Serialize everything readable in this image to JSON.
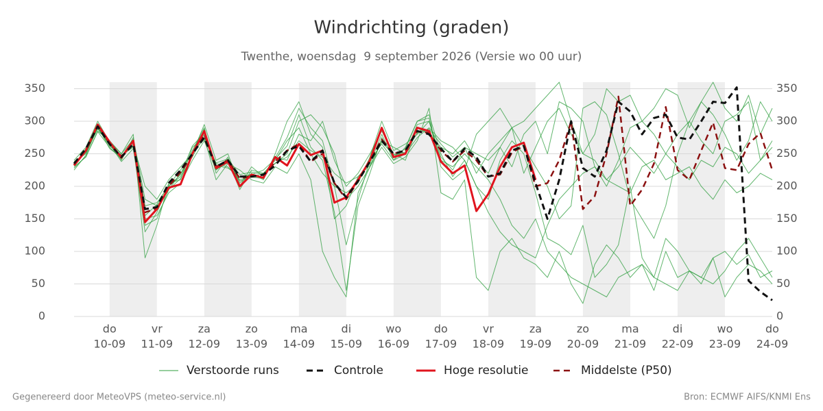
{
  "chart_data": {
    "type": "line",
    "title": "Windrichting (graden)",
    "subtitle": "Twenthe, woensdag  9 september 2026 (Versie wo 00 uur)",
    "footer_left": "Gegenereerd door MeteoVPS (meteo-service.nl)",
    "footer_right": "Bron: ECMWF AIFS/KNMI Ens",
    "categories": [
      null,
      null,
      null,
      {
        "day": "do",
        "date": "10-09"
      },
      null,
      null,
      null,
      {
        "day": "vr",
        "date": "11-09"
      },
      null,
      null,
      null,
      {
        "day": "za",
        "date": "12-09"
      },
      null,
      null,
      null,
      {
        "day": "zo",
        "date": "13-09"
      },
      null,
      null,
      null,
      {
        "day": "ma",
        "date": "14-09"
      },
      null,
      null,
      null,
      {
        "day": "di",
        "date": "15-09"
      },
      null,
      null,
      null,
      {
        "day": "wo",
        "date": "16-09"
      },
      null,
      null,
      null,
      {
        "day": "do",
        "date": "17-09"
      },
      null,
      null,
      null,
      {
        "day": "vr",
        "date": "18-09"
      },
      null,
      null,
      null,
      {
        "day": "za",
        "date": "19-09"
      },
      null,
      null,
      null,
      {
        "day": "zo",
        "date": "20-09"
      },
      null,
      null,
      null,
      {
        "day": "ma",
        "date": "21-09"
      },
      null,
      null,
      null,
      {
        "day": "di",
        "date": "22-09"
      },
      null,
      null,
      null,
      {
        "day": "wo",
        "date": "23-09"
      },
      null,
      null,
      null,
      {
        "day": "do",
        "date": "24-09"
      }
    ],
    "ylim": [
      0,
      360
    ],
    "yticks": [
      0,
      50,
      100,
      150,
      200,
      250,
      300,
      350
    ],
    "grid": true,
    "ensemble": {
      "name": "Verstoorde runs",
      "color": "#2e9e3e",
      "members": [
        [
          238,
          250,
          290,
          262,
          248,
          260,
          130,
          160,
          200,
          215,
          255,
          290,
          220,
          245,
          205,
          220,
          210,
          250,
          300,
          330,
          280,
          260,
          150,
          170,
          215,
          235,
          280,
          240,
          260,
          300,
          310,
          250,
          215,
          240,
          200,
          180,
          240,
          270,
          250,
          190,
          120,
          110,
          95,
          140,
          60,
          80,
          110,
          200,
          90,
          60,
          120,
          100,
          70,
          60,
          90,
          100,
          80,
          95,
          60,
          70
        ],
        [
          230,
          245,
          285,
          270,
          240,
          275,
          180,
          170,
          195,
          220,
          245,
          280,
          235,
          230,
          210,
          215,
          220,
          240,
          270,
          290,
          250,
          220,
          200,
          190,
          205,
          245,
          300,
          255,
          265,
          280,
          300,
          245,
          225,
          260,
          220,
          250,
          270,
          290,
          220,
          260,
          300,
          320,
          280,
          250,
          240,
          210,
          230,
          260,
          240,
          220,
          250,
          230,
          210,
          240,
          230,
          260,
          250,
          220,
          240,
          260
        ],
        [
          240,
          260,
          300,
          268,
          250,
          280,
          90,
          140,
          205,
          210,
          260,
          275,
          210,
          235,
          225,
          210,
          205,
          230,
          220,
          250,
          210,
          100,
          60,
          30,
          190,
          230,
          260,
          235,
          245,
          270,
          320,
          190,
          180,
          210,
          60,
          40,
          100,
          120,
          90,
          80,
          60,
          100,
          50,
          20,
          80,
          110,
          90,
          60,
          80,
          40,
          100,
          60,
          70,
          50,
          90,
          30,
          60,
          80,
          70,
          50
        ],
        [
          225,
          248,
          292,
          258,
          245,
          265,
          200,
          180,
          210,
          230,
          250,
          295,
          240,
          250,
          200,
          230,
          215,
          245,
          240,
          280,
          270,
          300,
          240,
          200,
          220,
          250,
          285,
          250,
          240,
          290,
          280,
          260,
          250,
          270,
          240,
          220,
          260,
          290,
          300,
          320,
          340,
          360,
          300,
          250,
          280,
          350,
          330,
          340,
          300,
          320,
          350,
          340,
          290,
          330,
          360,
          320,
          300,
          340,
          280,
          320
        ],
        [
          235,
          252,
          288,
          265,
          238,
          258,
          150,
          155,
          190,
          205,
          240,
          270,
          225,
          240,
          195,
          225,
          220,
          235,
          250,
          300,
          310,
          290,
          250,
          180,
          200,
          230,
          270,
          260,
          250,
          275,
          290,
          270,
          260,
          240,
          200,
          160,
          130,
          110,
          100,
          90,
          140,
          180,
          200,
          220,
          230,
          210,
          200,
          190,
          230,
          240,
          210,
          220,
          230,
          200,
          180,
          210,
          190,
          200,
          220,
          210
        ],
        [
          232,
          258,
          296,
          270,
          250,
          272,
          170,
          175,
          200,
          218,
          262,
          282,
          232,
          228,
          215,
          218,
          225,
          242,
          262,
          310,
          260,
          240,
          160,
          40,
          170,
          220,
          275,
          245,
          258,
          300,
          305,
          230,
          210,
          225,
          280,
          300,
          320,
          290,
          260,
          230,
          200,
          150,
          170,
          320,
          330,
          310,
          250,
          180,
          150,
          120,
          170,
          250,
          300,
          330,
          310,
          280,
          240,
          270,
          330,
          300
        ],
        [
          236,
          254,
          290,
          264,
          246,
          262,
          140,
          150,
          195,
          212,
          248,
          288,
          226,
          236,
          208,
          214,
          212,
          244,
          275,
          320,
          290,
          270,
          200,
          110,
          180,
          240,
          265,
          240,
          250,
          295,
          300,
          240,
          230,
          250,
          230,
          210,
          180,
          140,
          120,
          150,
          100,
          80,
          60,
          50,
          40,
          30,
          60,
          70,
          80,
          60,
          50,
          40,
          70,
          60,
          50,
          70,
          100,
          120,
          90,
          60
        ],
        [
          228,
          246,
          284,
          260,
          242,
          268,
          155,
          172,
          202,
          225,
          252,
          272,
          236,
          242,
          218,
          222,
          218,
          236,
          245,
          270,
          255,
          245,
          220,
          205,
          215,
          232,
          268,
          248,
          252,
          282,
          288,
          265,
          245,
          260,
          250,
          240,
          260,
          230,
          280,
          300,
          250,
          330,
          320,
          300,
          230,
          200,
          240,
          290,
          300,
          280,
          250,
          280,
          300,
          270,
          250,
          300,
          310,
          330,
          240,
          270
        ]
      ]
    },
    "series": [
      {
        "name": "Controle",
        "color": "#111111",
        "style": "dashed",
        "width": 3,
        "values": [
          235,
          258,
          292,
          265,
          245,
          265,
          165,
          168,
          205,
          225,
          250,
          275,
          230,
          240,
          215,
          215,
          218,
          232,
          255,
          262,
          238,
          255,
          205,
          183,
          208,
          238,
          270,
          250,
          255,
          285,
          280,
          258,
          238,
          258,
          245,
          215,
          220,
          255,
          262,
          205,
          150,
          210,
          300,
          228,
          215,
          255,
          330,
          315,
          280,
          305,
          310,
          275,
          272,
          300,
          330,
          328,
          352,
          55,
          38,
          25
        ]
      },
      {
        "name": "Hoge resolutie",
        "color": "#e0141e",
        "style": "solid",
        "width": 3,
        "values": [
          232,
          255,
          295,
          268,
          244,
          270,
          145,
          165,
          198,
          203,
          250,
          285,
          228,
          238,
          200,
          218,
          213,
          245,
          232,
          265,
          248,
          255,
          175,
          183,
          210,
          240,
          290,
          245,
          250,
          290,
          285,
          238,
          220,
          232,
          162,
          188,
          230,
          260,
          267,
          210,
          null,
          null,
          null,
          null,
          null,
          null,
          null,
          null,
          null,
          null,
          null,
          null,
          null,
          null,
          null,
          null,
          null,
          null,
          null,
          null
        ]
      },
      {
        "name": "Middelste (P50)",
        "color": "#8b1010",
        "style": "dashed",
        "width": 2.5,
        "values": [
          233,
          256,
          294,
          266,
          246,
          268,
          160,
          166,
          200,
          222,
          248,
          280,
          230,
          240,
          212,
          216,
          215,
          238,
          255,
          265,
          238,
          250,
          205,
          180,
          208,
          240,
          272,
          250,
          255,
          285,
          282,
          255,
          238,
          255,
          240,
          215,
          218,
          252,
          262,
          200,
          205,
          240,
          300,
          165,
          185,
          250,
          338,
          170,
          195,
          235,
          322,
          225,
          210,
          255,
          298,
          228,
          225,
          265,
          282,
          225
        ]
      }
    ]
  }
}
